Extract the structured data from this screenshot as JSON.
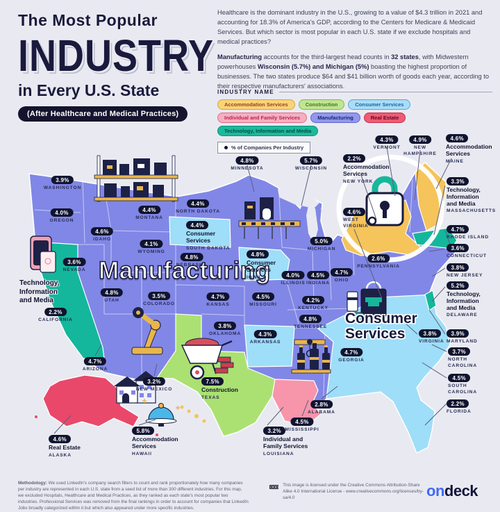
{
  "header": {
    "title_line1": "The Most Popular",
    "title_line2": "INDUSTRY",
    "title_line3": "in Every U.S. State",
    "subtitle_pill": "(After Healthcare and Medical Practices)",
    "intro": [
      {
        "segments": [
          {
            "t": "Healthcare is the dominant industry in the U.S., growing to a value of $4.3 trillion in 2021 and accounting for 18.3% of America's GDP, according to the Centers for Medicare & Medicaid Services. But which sector is most popular in each U.S. state if we exclude hospitals and medical practices?",
            "b": false
          }
        ]
      },
      {
        "segments": [
          {
            "t": "Manufacturing",
            "b": true
          },
          {
            "t": " accounts for the third-largest head counts in ",
            "b": false
          },
          {
            "t": "32 states",
            "b": true
          },
          {
            "t": ", with Midwestern powerhouses ",
            "b": false
          },
          {
            "t": "Wisconsin (5.7%) and Michigan (5%)",
            "b": true
          },
          {
            "t": " boasting the highest proportion of businesses. The two states produce $64 and $41 billion worth of goods each year, according to their respective manufacturers' associations.",
            "b": false
          }
        ]
      }
    ]
  },
  "legend": {
    "title": "INDUSTRY NAME",
    "items": [
      {
        "label": "Accommodation Services",
        "bg": "#f8d478",
        "border": "#d9a43c",
        "text_color": "#9c3d20"
      },
      {
        "label": "Construction",
        "bg": "#c0e592",
        "border": "#7fb950",
        "text_color": "#41741f"
      },
      {
        "label": "Consumer Services",
        "bg": "#aadcf7",
        "border": "#57a7d4",
        "text_color": "#16699f"
      },
      {
        "label": "Individual and Family Services",
        "bg": "#f6afc0",
        "border": "#e06c8b",
        "text_color": "#ba2450"
      },
      {
        "label": "Manufacturing",
        "bg": "#9298ec",
        "border": "#5f66cc",
        "text_color": "#1d2470"
      },
      {
        "label": "Real Estate",
        "bg": "#ef5b76",
        "border": "#c52b49",
        "text_color": "#5e0a1d"
      },
      {
        "label": "Technology, Information and Media",
        "bg": "#1cb99c",
        "border": "#0f8f78",
        "text_color": "#074d3f"
      }
    ],
    "note": "% of Companies Per Industry"
  },
  "map": {
    "big_labels": [
      {
        "text": "Manufacturing"
      },
      {
        "text": "Consumer\nServices"
      }
    ],
    "industry_colors": {
      "Manufacturing": "#8187e6",
      "Consumer Services": "#9edef8",
      "Technology, Information and Media": "#14b79b",
      "Accommodation Services": "#f5c45a",
      "Real Estate": "#e9486b",
      "Construction": "#abe172",
      "Individual and Family Services": "#f795ab"
    },
    "states": [
      {
        "name": "WASHINGTON",
        "value": "3.9%",
        "industry": "Manufacturing",
        "show_industry": false
      },
      {
        "name": "OREGON",
        "value": "4.0%",
        "industry": "Manufacturing",
        "show_industry": false
      },
      {
        "name": "CALIFORNIA",
        "value": "2.2%",
        "industry": "Technology,\nInformation\nand Media",
        "show_industry": false
      },
      {
        "name": "NEVADA",
        "value": "3.6%",
        "industry": "Manufacturing",
        "show_industry": false
      },
      {
        "name": "IDAHO",
        "value": "4.6%",
        "industry": "Manufacturing",
        "show_industry": false
      },
      {
        "name": "UTAH",
        "value": "4.8%",
        "industry": "Manufacturing",
        "show_industry": false
      },
      {
        "name": "ARIZONA",
        "value": "4.7%",
        "industry": "Manufacturing",
        "show_industry": false
      },
      {
        "name": "MONTANA",
        "value": "4.4%",
        "industry": "Manufacturing",
        "show_industry": false
      },
      {
        "name": "WYOMING",
        "value": "4.1%",
        "industry": "Manufacturing",
        "show_industry": false
      },
      {
        "name": "COLORADO",
        "value": "3.5%",
        "industry": "Manufacturing",
        "show_industry": false
      },
      {
        "name": "NEW MEXICO",
        "value": "3.2%",
        "industry": "Manufacturing",
        "show_industry": false
      },
      {
        "name": "NORTH DAKOTA",
        "value": "4.4%",
        "industry": "Manufacturing",
        "show_industry": false
      },
      {
        "name": "SOUTH DAKOTA",
        "value": "4.4%",
        "industry": "Consumer\nServices",
        "show_industry": true
      },
      {
        "name": "NEBRASKA",
        "value": "4.8%",
        "industry": "Manufacturing",
        "show_industry": false
      },
      {
        "name": "KANSAS",
        "value": "4.7%",
        "industry": "Manufacturing",
        "show_industry": false
      },
      {
        "name": "OKLAHOMA",
        "value": "3.8%",
        "industry": "Manufacturing",
        "show_industry": false
      },
      {
        "name": "TEXAS",
        "value": "7.5%",
        "industry": "Construction",
        "show_industry": true
      },
      {
        "name": "MINNESOTA",
        "value": "4.8%",
        "industry": "Manufacturing",
        "show_industry": false
      },
      {
        "name": "IOWA",
        "value": "4.8%",
        "industry": "Consumer\nServices",
        "show_industry": true
      },
      {
        "name": "MISSOURI",
        "value": "4.5%",
        "industry": "Manufacturing",
        "show_industry": false
      },
      {
        "name": "ARKANSAS",
        "value": "4.3%",
        "industry": "Consumer Services",
        "show_industry": false
      },
      {
        "name": "LOUISIANA",
        "value": "3.2%",
        "industry": "Individual and\nFamily Services",
        "show_industry": true
      },
      {
        "name": "WISCONSIN",
        "value": "5.7%",
        "industry": "Manufacturing",
        "show_industry": false
      },
      {
        "name": "ILLINOIS",
        "value": "4.0%",
        "industry": "Manufacturing",
        "show_industry": false
      },
      {
        "name": "MICHIGAN",
        "value": "5.0%",
        "industry": "Manufacturing",
        "show_industry": false
      },
      {
        "name": "INDIANA",
        "value": "4.5%",
        "industry": "Manufacturing",
        "show_industry": false
      },
      {
        "name": "OHIO",
        "value": "4.7%",
        "industry": "Manufacturing",
        "show_industry": false
      },
      {
        "name": "KENTUCKY",
        "value": "4.2%",
        "industry": "Manufacturing",
        "show_industry": false
      },
      {
        "name": "TENNESSEE",
        "value": "4.8%",
        "industry": "Manufacturing",
        "show_industry": false
      },
      {
        "name": "MISSISSIPPI",
        "value": "4.5%",
        "industry": "Manufacturing",
        "show_industry": false
      },
      {
        "name": "ALABAMA",
        "value": "2.8%",
        "industry": "Manufacturing",
        "show_industry": false
      },
      {
        "name": "GEORGIA",
        "value": "4.7%",
        "industry": "Consumer Services",
        "show_industry": false
      },
      {
        "name": "FLORIDA",
        "value": "2.2%",
        "industry": "Consumer Services",
        "show_industry": false
      },
      {
        "name": "SOUTH\nCAROLINA",
        "value": "4.5%",
        "industry": "Consumer Services",
        "show_industry": false
      },
      {
        "name": "NORTH\nCAROLINA",
        "value": "3.7%",
        "industry": "Consumer Services",
        "show_industry": false
      },
      {
        "name": "VIRGINIA",
        "value": "3.8%",
        "industry": "Consumer Services",
        "show_industry": false
      },
      {
        "name": "WEST\nVIRGINIA",
        "value": "4.6%",
        "industry": "Manufacturing",
        "show_industry": false
      },
      {
        "name": "MARYLAND",
        "value": "3.9%",
        "industry": "Consumer Services",
        "show_industry": false
      },
      {
        "name": "DELAWARE",
        "value": "5.2%",
        "industry": "Technology,\nInformation\nand Media",
        "show_industry": true
      },
      {
        "name": "NEW JERSEY",
        "value": "3.8%",
        "industry": "Manufacturing",
        "show_industry": false
      },
      {
        "name": "PENNSYLVANIA",
        "value": "2.6%",
        "industry": "Manufacturing",
        "show_industry": false
      },
      {
        "name": "NEW YORK",
        "value": "2.2%",
        "industry": "Accommodation\nServices",
        "show_industry": true
      },
      {
        "name": "CONNECTICUT",
        "value": "3.6%",
        "industry": "Manufacturing",
        "show_industry": false
      },
      {
        "name": "RHODE ISLAND",
        "value": "4.7%",
        "industry": "Manufacturing",
        "show_industry": false
      },
      {
        "name": "MASSACHUSETTS",
        "value": "3.3%",
        "industry": "Technology,\nInformation\nand Media",
        "show_industry": true
      },
      {
        "name": "VERMONT",
        "value": "4.3%",
        "industry": "Manufacturing",
        "show_industry": false
      },
      {
        "name": "NEW\nHAMPSHIRE",
        "value": "4.9%",
        "industry": "Manufacturing",
        "show_industry": false
      },
      {
        "name": "MAINE",
        "value": "4.6%",
        "industry": "Accommodation\nServices",
        "show_industry": true
      },
      {
        "name": "ALASKA",
        "value": "4.6%",
        "industry": "Real Estate",
        "show_industry": true
      },
      {
        "name": "HAWAII",
        "value": "5.8%",
        "industry": "Accommodation\nServices",
        "show_industry": true
      }
    ]
  },
  "footer": {
    "methodology": [
      {
        "t": "Methodology:",
        "b": true
      },
      {
        "t": " We used LinkedIn's company search filters to count and rank proportionately how many companies per industry are represented in each U.S. state from a seed list of more than 300 different industries. For this map, we excluded Hospitals, Healthcare and Medical Practices, as they ranked as each state's most popular two industries. Professional Services was removed from the final rankings in order to account for companies that LinkedIn Jobs broadly categorized within it but which also appeared under more specific industries.",
        "b": false
      }
    ],
    "license": "This image is licensed under the Creative Commons Attribution-Share Alike 4.0 International License - www.creativecommons.org/licenses/by-sa/4.0",
    "brand": {
      "part1": "on",
      "part2": "deck"
    }
  }
}
